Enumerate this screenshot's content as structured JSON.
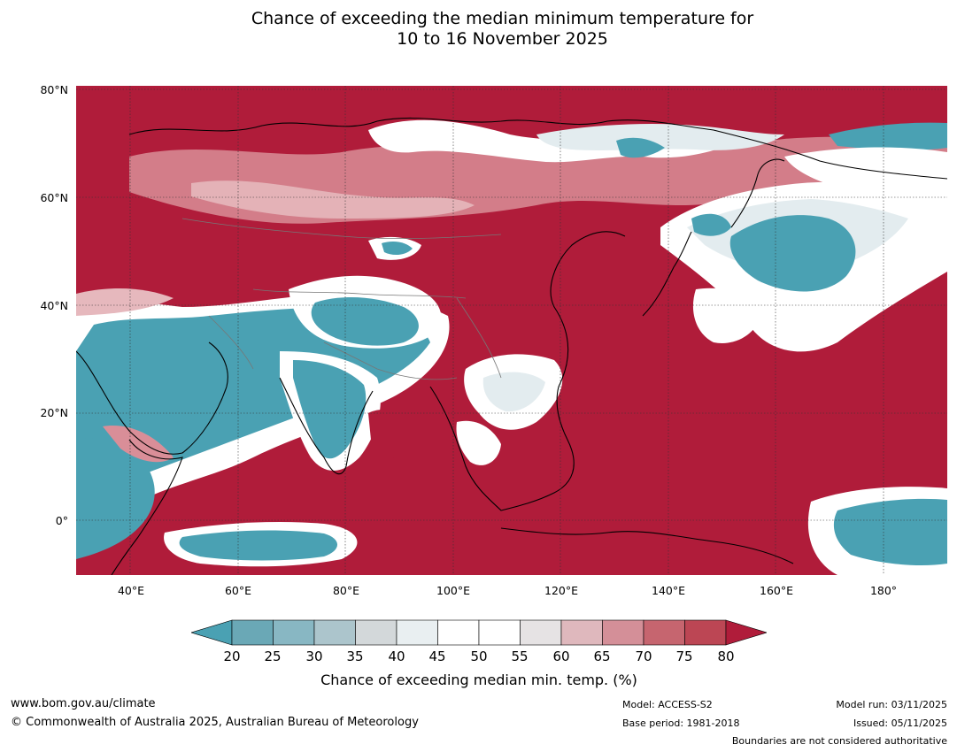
{
  "title": {
    "line1": "Chance of exceeding the median minimum temperature for",
    "line2": "10 to 16 November 2025"
  },
  "map": {
    "lat_labels": [
      "80°N",
      "60°N",
      "40°N",
      "20°N",
      "0°"
    ],
    "lon_labels": [
      "40°E",
      "60°E",
      "80°E",
      "100°E",
      "120°E",
      "140°E",
      "160°E",
      "180°"
    ],
    "colors": {
      "high": "#b01c3a",
      "mid_high": "#c64a5c",
      "light_pink": "#d98e98",
      "pale_pink": "#e6b8bd",
      "white": "#ffffff",
      "pale_blue": "#e3ecef",
      "light_blue": "#a9c8cf",
      "low": "#4aa1b3",
      "coastline": "#000000",
      "border": "#777777",
      "grid": "#333333"
    }
  },
  "colorbar": {
    "ticks": [
      "20",
      "25",
      "30",
      "35",
      "40",
      "45",
      "50",
      "55",
      "60",
      "65",
      "70",
      "75",
      "80"
    ],
    "colors": [
      "#6aa8b6",
      "#88b7c3",
      "#acc5cc",
      "#d3d8da",
      "#e9eff1",
      "#ffffff",
      "#ffffff",
      "#e6e3e4",
      "#dfb8bd",
      "#d48f98",
      "#c6656f",
      "#bc4654"
    ],
    "low_arrow_color": "#4aa1b3",
    "high_arrow_color": "#b01c3a",
    "label": "Chance of exceeding median min. temp. (%)"
  },
  "footer": {
    "url": "www.bom.gov.au/climate",
    "copyright": "© Commonwealth of Australia 2025, Australian Bureau of Meteorology",
    "model": "Model: ACCESS-S2",
    "base_period": "Base period: 1981-2018",
    "model_run": "Model run: 03/11/2025",
    "issued": "Issued: 05/11/2025",
    "disclaimer": "Boundaries are not considered authoritative"
  }
}
